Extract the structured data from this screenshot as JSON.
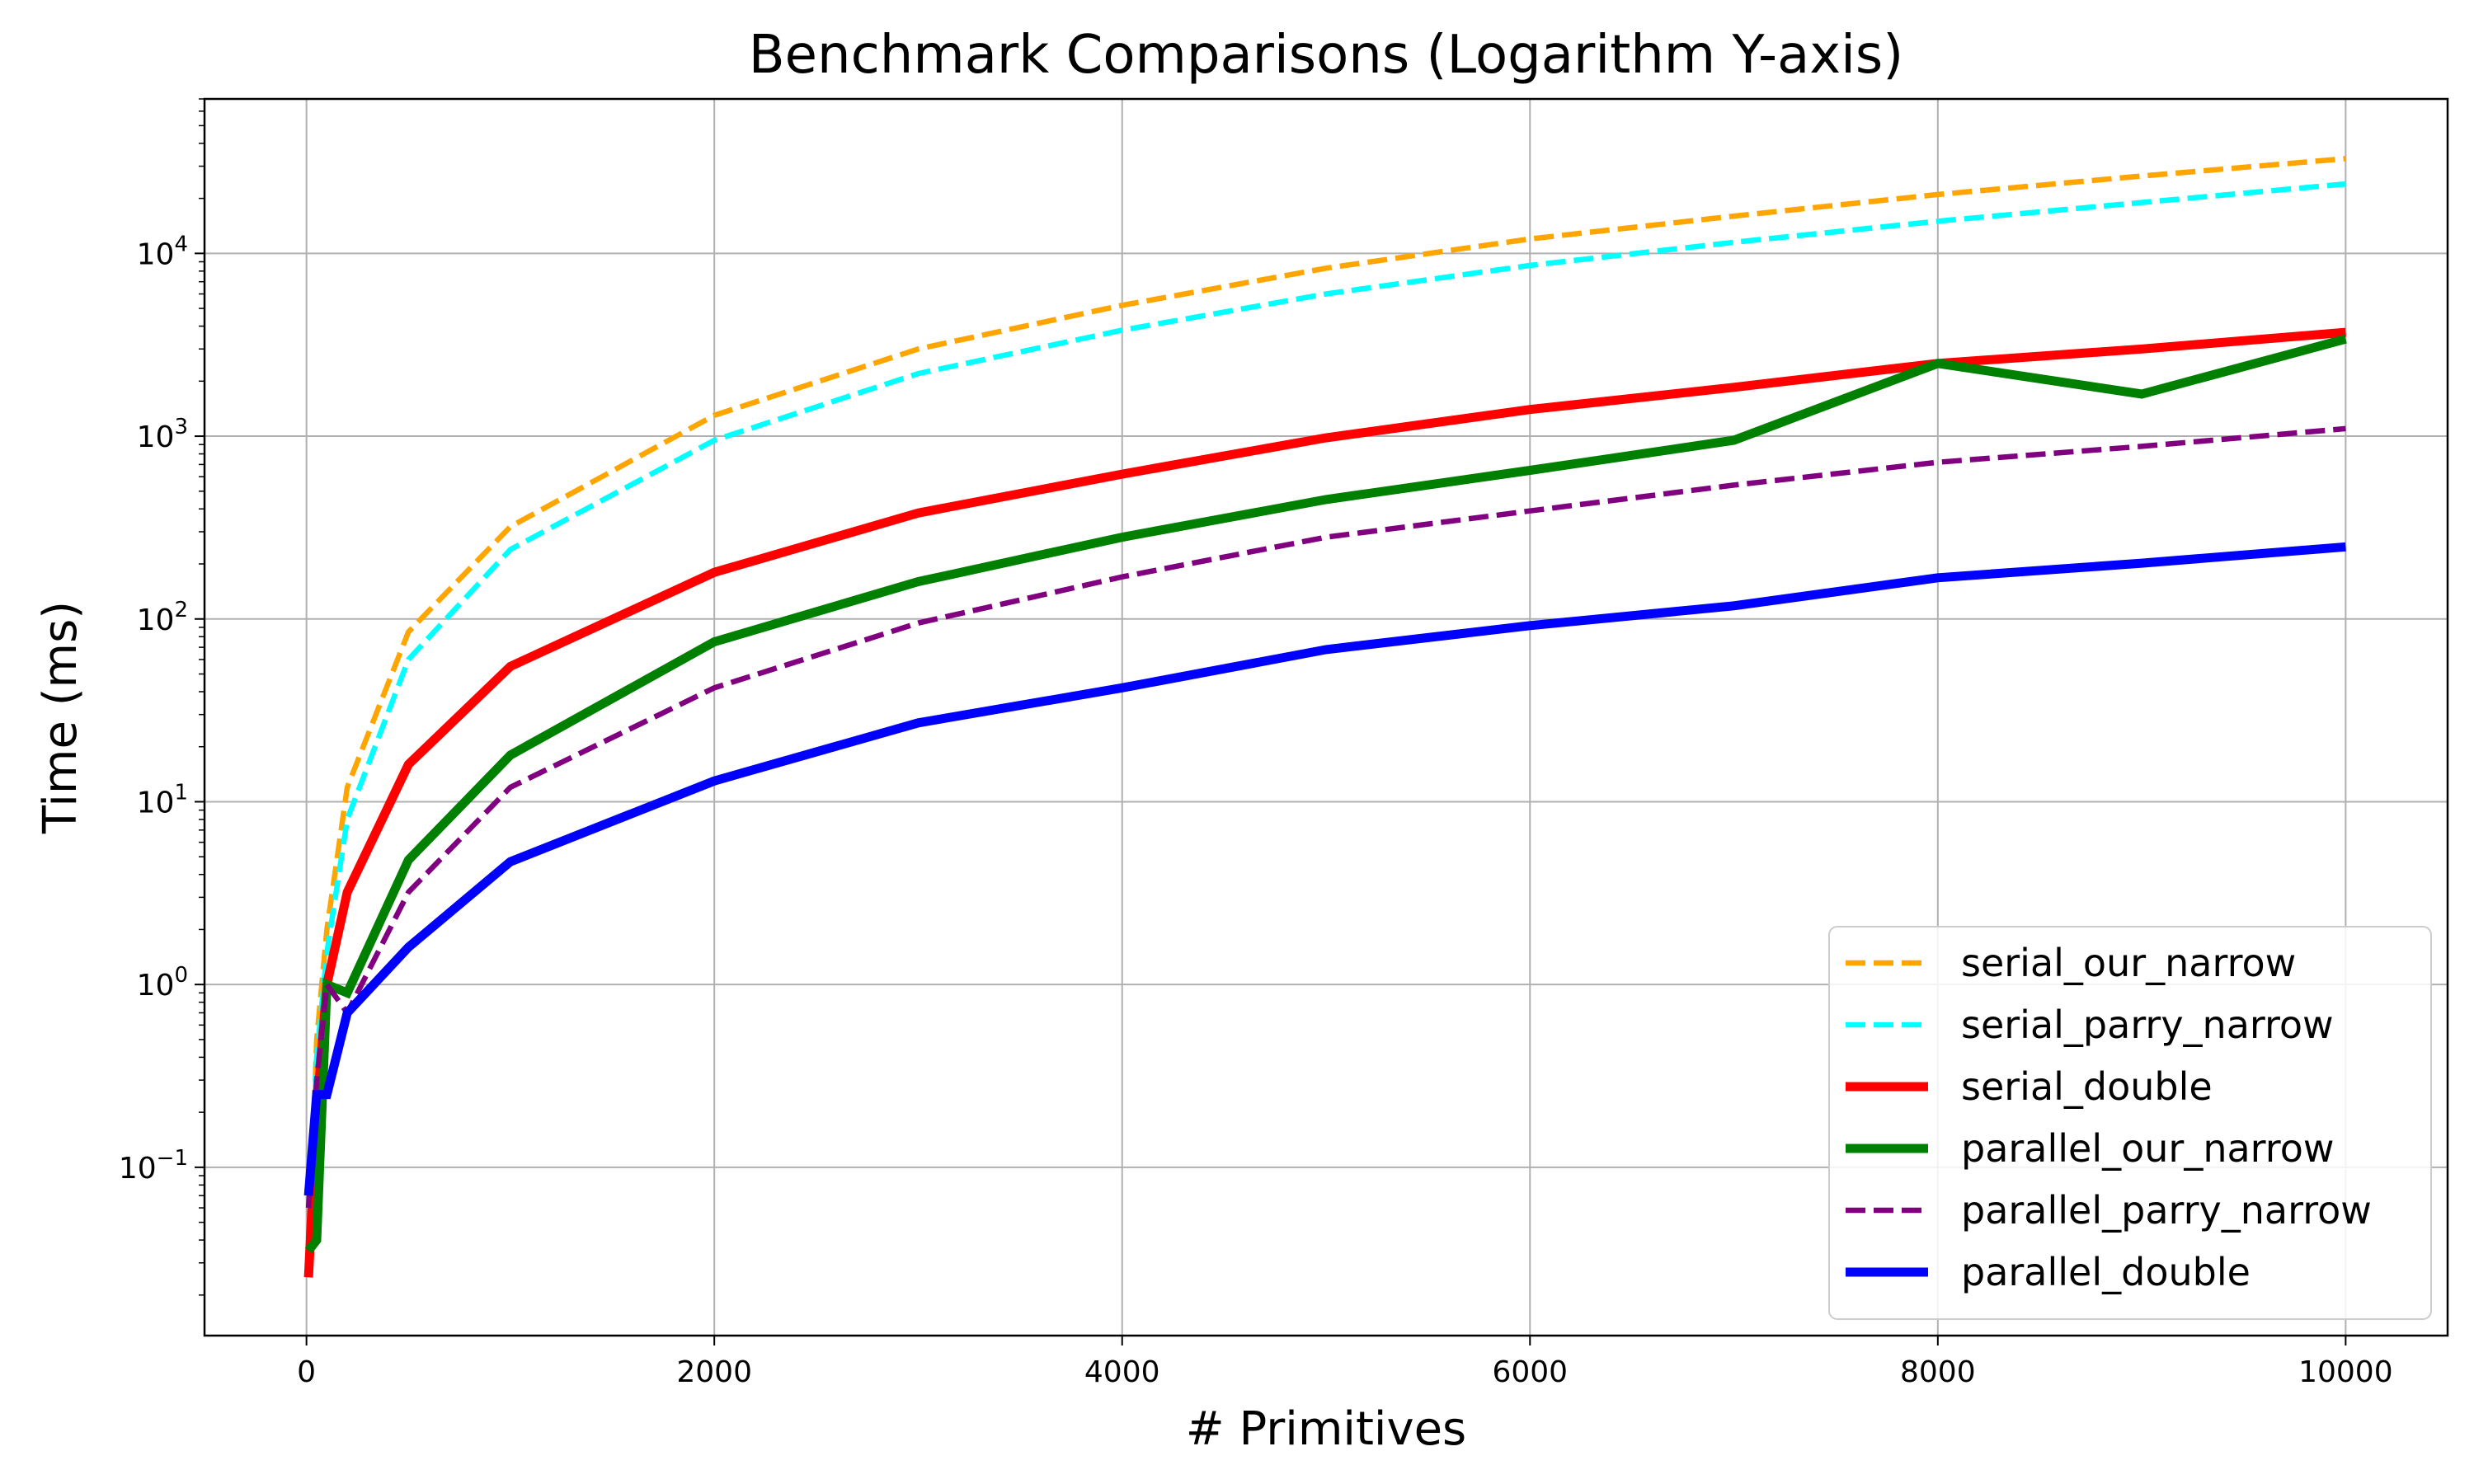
{
  "chart_data": {
    "type": "line",
    "title": "Benchmark Comparisons (Logarithm Y-axis)",
    "xlabel": "# Primitives",
    "ylabel": "Time (ms)",
    "y_scale": "log",
    "xlim": [
      -500,
      10500
    ],
    "ylim": [
      0.012,
      70000
    ],
    "x_ticks": [
      0,
      2000,
      4000,
      6000,
      8000,
      10000
    ],
    "x_tick_labels": [
      "0",
      "2000",
      "4000",
      "6000",
      "8000",
      "10000"
    ],
    "y_ticks": [
      0.1,
      1,
      10,
      100,
      1000,
      10000
    ],
    "y_tick_labels": [
      {
        "base": "10",
        "exp": "−1"
      },
      {
        "base": "10",
        "exp": "0"
      },
      {
        "base": "10",
        "exp": "1"
      },
      {
        "base": "10",
        "exp": "2"
      },
      {
        "base": "10",
        "exp": "3"
      },
      {
        "base": "10",
        "exp": "4"
      }
    ],
    "grid": true,
    "legend_position": "lower-right",
    "x": [
      10,
      50,
      100,
      200,
      500,
      1000,
      2000,
      3000,
      4000,
      5000,
      6000,
      7000,
      8000,
      9000,
      10000
    ],
    "series": [
      {
        "name": "serial_our_narrow",
        "color": "#FFA500",
        "style": "dashed",
        "width": "thin",
        "values": [
          0.025,
          0.5,
          2.0,
          12,
          85,
          320,
          1300,
          3000,
          5200,
          8300,
          12000,
          16000,
          21000,
          26500,
          33000
        ]
      },
      {
        "name": "serial_parry_narrow",
        "color": "#00FFFF",
        "style": "dashed",
        "width": "thin",
        "values": [
          0.03,
          0.4,
          1.5,
          8,
          60,
          240,
          950,
          2200,
          3800,
          6000,
          8600,
          11500,
          15000,
          19000,
          24000
        ]
      },
      {
        "name": "serial_double",
        "color": "#FF0000",
        "style": "solid",
        "width": "thick",
        "values": [
          0.025,
          0.2,
          1.0,
          3.2,
          16,
          55,
          180,
          380,
          620,
          980,
          1400,
          1850,
          2500,
          3000,
          3700
        ]
      },
      {
        "name": "parallel_our_narrow",
        "color": "#008000",
        "style": "solid",
        "width": "thick",
        "values": [
          0.035,
          0.04,
          1.0,
          0.9,
          4.8,
          18,
          75,
          160,
          280,
          450,
          650,
          950,
          2500,
          1700,
          3400
        ]
      },
      {
        "name": "parallel_parry_narrow",
        "color": "#800080",
        "style": "dashed",
        "width": "thin",
        "values": [
          0.06,
          0.3,
          1.0,
          0.7,
          3.2,
          12,
          42,
          95,
          170,
          280,
          390,
          540,
          720,
          880,
          1100
        ]
      },
      {
        "name": "parallel_double",
        "color": "#0000FF",
        "style": "solid",
        "width": "thick",
        "values": [
          0.07,
          0.25,
          0.25,
          0.7,
          1.6,
          4.7,
          13,
          27,
          42,
          68,
          92,
          118,
          168,
          202,
          248
        ]
      }
    ]
  }
}
